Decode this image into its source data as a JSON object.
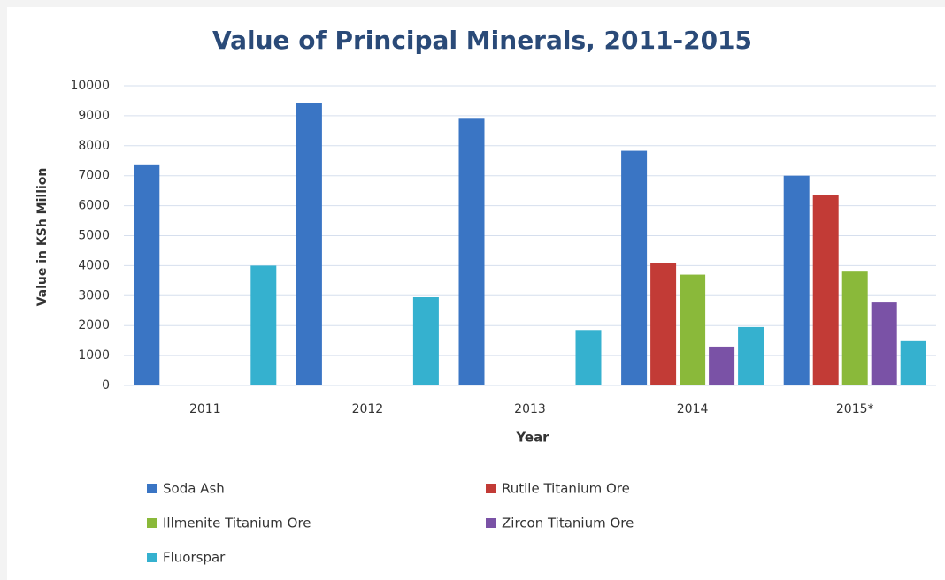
{
  "chart_data": {
    "type": "bar",
    "title": "Value of Principal  Minerals, 2011-2015",
    "x_label": "Year",
    "y_label": "Value in KSh Million",
    "categories": [
      "2011",
      "2012",
      "2013",
      "2014",
      "2015*"
    ],
    "series": [
      {
        "name": "Soda Ash",
        "color": "#3a75c4",
        "values": [
          7350,
          9420,
          8900,
          7830,
          7000
        ]
      },
      {
        "name": "Rutile Titanium Ore",
        "color": "#c23b36",
        "values": [
          null,
          null,
          null,
          4100,
          6350
        ]
      },
      {
        "name": "Illmenite Titanium Ore",
        "color": "#8ab93a",
        "values": [
          null,
          null,
          null,
          3700,
          3800
        ]
      },
      {
        "name": "Zircon Titanium Ore",
        "color": "#7a52a6",
        "values": [
          null,
          null,
          null,
          1300,
          2770
        ]
      },
      {
        "name": "Fluorspar",
        "color": "#35b1cf",
        "values": [
          4000,
          2950,
          1850,
          1950,
          1480
        ]
      }
    ],
    "ylim": [
      0,
      10000
    ],
    "yticks": [
      0,
      1000,
      2000,
      3000,
      4000,
      5000,
      6000,
      7000,
      8000,
      9000,
      10000
    ],
    "grid": true,
    "legend": "bottom"
  }
}
